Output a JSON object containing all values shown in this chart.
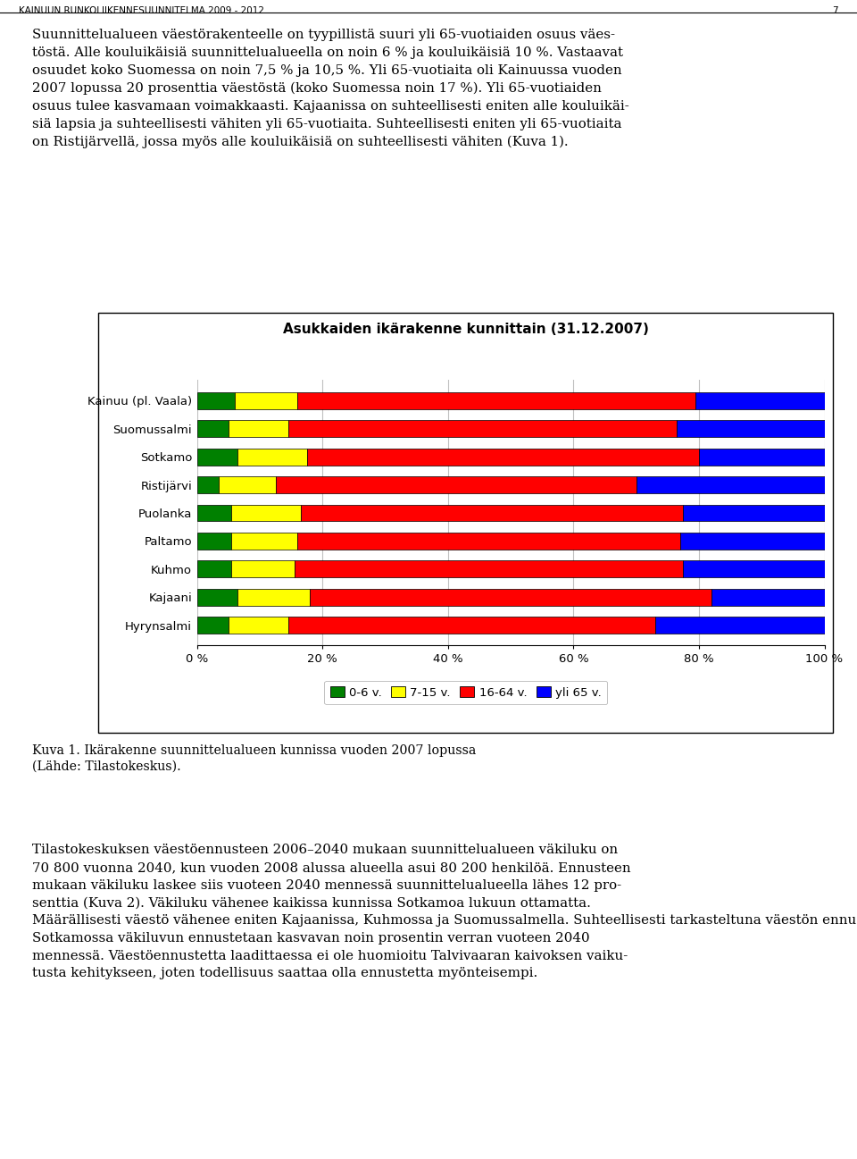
{
  "title": "Asukkaiden ikärakenne kunnittain (31.12.2007)",
  "categories": [
    "Kainuu (pl. Vaala)",
    "Suomussalmi",
    "Sotkamo",
    "Ristijärvi",
    "Puolanka",
    "Paltamo",
    "Kuhmo",
    "Kajaani",
    "Hyrynsalmi"
  ],
  "series": {
    "0-6 v.": [
      6.0,
      5.0,
      6.5,
      3.5,
      5.5,
      5.5,
      5.5,
      6.5,
      5.0
    ],
    "7-15 v.": [
      10.0,
      9.5,
      11.0,
      9.0,
      11.0,
      10.5,
      10.0,
      11.5,
      9.5
    ],
    "16-64 v.": [
      63.5,
      62.0,
      62.5,
      57.5,
      61.0,
      61.0,
      62.0,
      64.0,
      58.5
    ],
    "yli 65 v.": [
      20.5,
      23.5,
      20.0,
      30.0,
      22.5,
      23.0,
      22.5,
      18.0,
      27.0
    ]
  },
  "colors": {
    "0-6 v.": "#008000",
    "7-15 v.": "#FFFF00",
    "16-64 v.": "#FF0000",
    "yli 65 v.": "#0000FF"
  },
  "xlim": [
    0,
    100
  ],
  "xticks": [
    0,
    20,
    40,
    60,
    80,
    100
  ],
  "xticklabels": [
    "0 %",
    "20 %",
    "40 %",
    "60 %",
    "80 %",
    "100 %"
  ],
  "header_text": "KAINUUN RUNKOLIIKENNESUUNNITELMA 2009 - 2012",
  "header_page": "7",
  "body_text": "Suunnittelualueen väestörakenteelle on tyypillistä suuri yli 65-vuotiaiden osuus väes-\ntöstä. Alle kouluikäisiä suunnittelualueella on noin 6 % ja kouluikäisiä 10 %. Vastaavat\nosuudet koko Suomessa on noin 7,5 % ja 10,5 %. Yli 65-vuotiaita oli Kainuussa vuoden\n2007 lopussa 20 prosenttia väestöstä (koko Suomessa noin 17 %). Yli 65-vuotiaiden\nosuus tulee kasvamaan voimakkaasti. Kajaanissa on suhteellisesti eniten alle kouluikäi-\nsiä lapsia ja suhteellisesti vähiten yli 65-vuotiaita. Suhteellisesti eniten yli 65-vuotiaita\non Ristijärvellä, jossa myös alle kouluikäisiä on suhteellisesti vähiten (Kuva 1).",
  "caption_text": "Kuva 1. Ikärakenne suunnittelualueen kunnissa vuoden 2007 lopussa\n(Lähde: Tilastokeskus).",
  "footer_text": "Tilastokeskuksen väestöennusteen 2006–2040 mukaan suunnittelualueen väkiluku on\n70 800 vuonna 2040, kun vuoden 2008 alussa alueella asui 80 200 henkilöä. Ennusteen\nmukaan väkiluku laskee siis vuoteen 2040 mennessä suunnittelualueella lähes 12 pro-\nsenttia (Kuva 2). Väkiluku vähenee kaikissa kunnissa Sotkamoa lukuun ottamatta.\nMäärällisesti väestö vähenee eniten Kajaanissa, Kuhmossa ja Suomussalmella. Suhteellisesti tarkasteltuna väestön ennustetaan vähenevän eniten Kuhmossa ja Puolangalla.\nSotkamossa väkiluvun ennustetaan kasvavan noin prosentin verran vuoteen 2040\nmennessä. Väestöennustetta laadittaessa ei ole huomioitu Talvivaaran kaivoksen vaiku-\ntusta kehitykseen, joten todellisuus saattaa olla ennustetta myönteisempi."
}
